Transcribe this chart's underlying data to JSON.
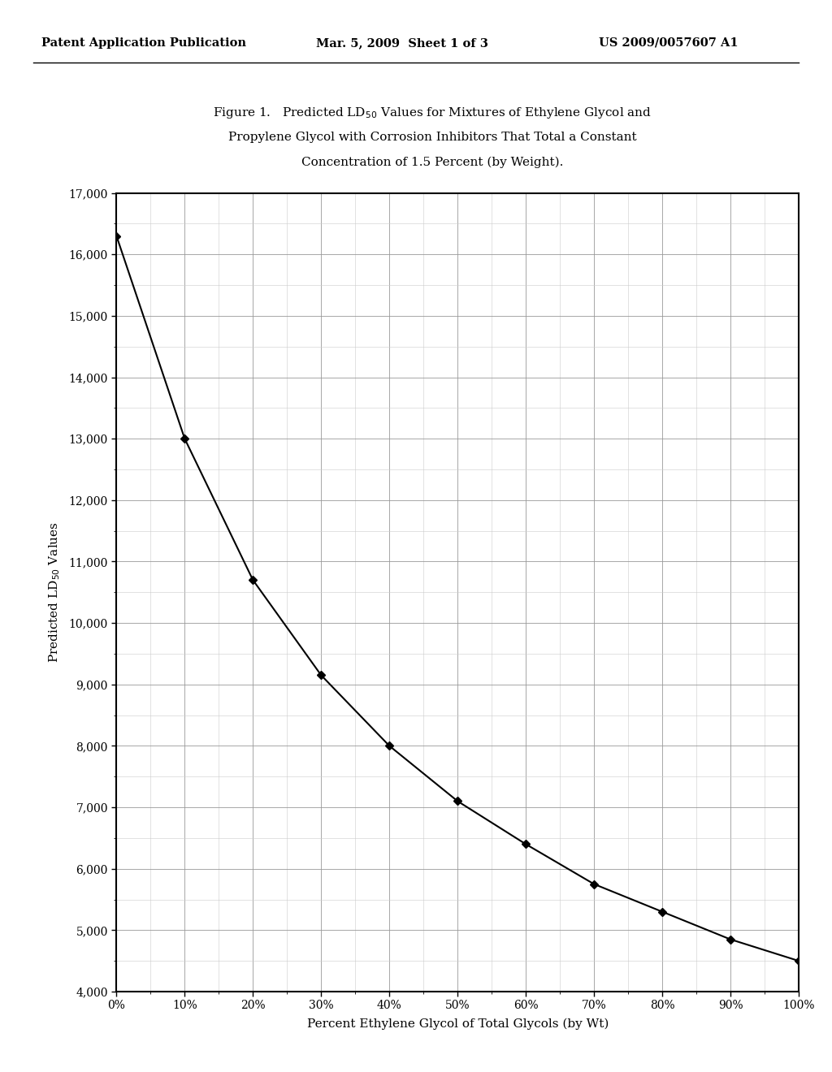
{
  "title_line1": "Figure 1.   Predicted LD$_{50}$ Values for Mixtures of Ethylene Glycol and",
  "title_line2": "Propylene Glycol with Corrosion Inhibitors That Total a Constant",
  "title_line3": "Concentration of 1.5 Percent (by Weight).",
  "xlabel": "Percent Ethylene Glycol of Total Glycols (by Wt)",
  "ylabel": "Predicted LD$_{50}$ Values",
  "x_values": [
    0,
    10,
    20,
    30,
    40,
    50,
    60,
    70,
    80,
    90,
    100
  ],
  "y_values": [
    16300,
    13000,
    10700,
    9150,
    8000,
    7100,
    6400,
    5750,
    5300,
    4850,
    4500
  ],
  "x_tick_labels": [
    "0%",
    "10%",
    "20%",
    "30%",
    "40%",
    "50%",
    "60%",
    "70%",
    "80%",
    "90%",
    "100%"
  ],
  "y_tick_values": [
    4000,
    5000,
    6000,
    7000,
    8000,
    9000,
    10000,
    11000,
    12000,
    13000,
    14000,
    15000,
    16000,
    17000
  ],
  "xlim": [
    0,
    100
  ],
  "ylim": [
    4000,
    17000
  ],
  "header_left": "Patent Application Publication",
  "header_center": "Mar. 5, 2009  Sheet 1 of 3",
  "header_right": "US 2009/0057607 A1",
  "background_color": "#ffffff",
  "line_color": "#000000",
  "marker_color": "#000000",
  "grid_major_color": "#999999",
  "grid_minor_color": "#cccccc",
  "axis_color": "#000000"
}
